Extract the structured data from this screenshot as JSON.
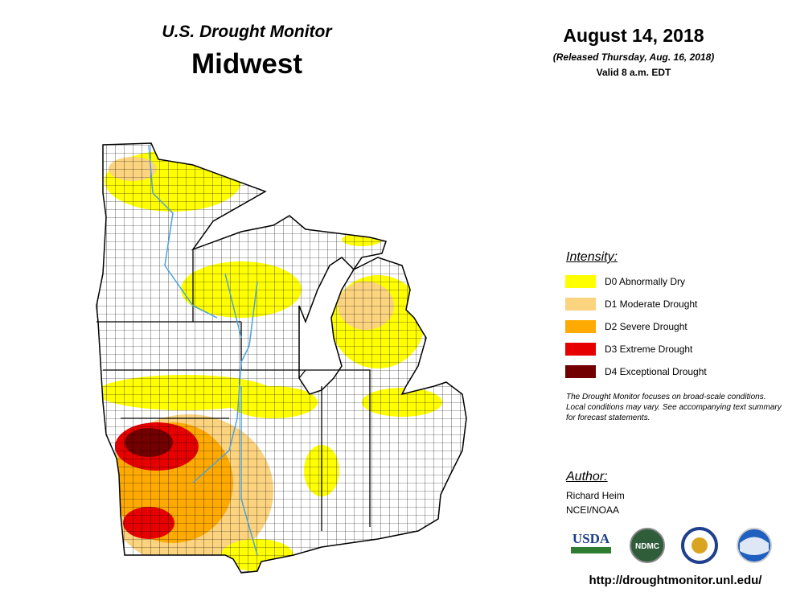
{
  "header": {
    "title": "U.S. Drought Monitor",
    "region": "Midwest"
  },
  "dates": {
    "date": "August 14, 2018",
    "released": "(Released Thursday, Aug. 16, 2018)",
    "valid": "Valid 8 a.m. EDT"
  },
  "legend": {
    "title": "Intensity:",
    "items": [
      {
        "label": "D0 Abnormally Dry",
        "color": "#ffff00"
      },
      {
        "label": "D1 Moderate Drought",
        "color": "#fcd37f"
      },
      {
        "label": "D2 Severe Drought",
        "color": "#ffaa00"
      },
      {
        "label": "D3 Extreme Drought",
        "color": "#e60000"
      },
      {
        "label": "D4 Exceptional Drought",
        "color": "#730000"
      }
    ]
  },
  "note": "The Drought Monitor focuses on broad-scale conditions. Local conditions may vary. See accompanying text summary for forecast statements.",
  "author": {
    "label": "Author:",
    "name": "Richard Heim",
    "org": "NCEI/NOAA"
  },
  "logos": [
    "USDA",
    "NDMC"
  ],
  "url": "http://droughtmonitor.unl.edu/"
}
